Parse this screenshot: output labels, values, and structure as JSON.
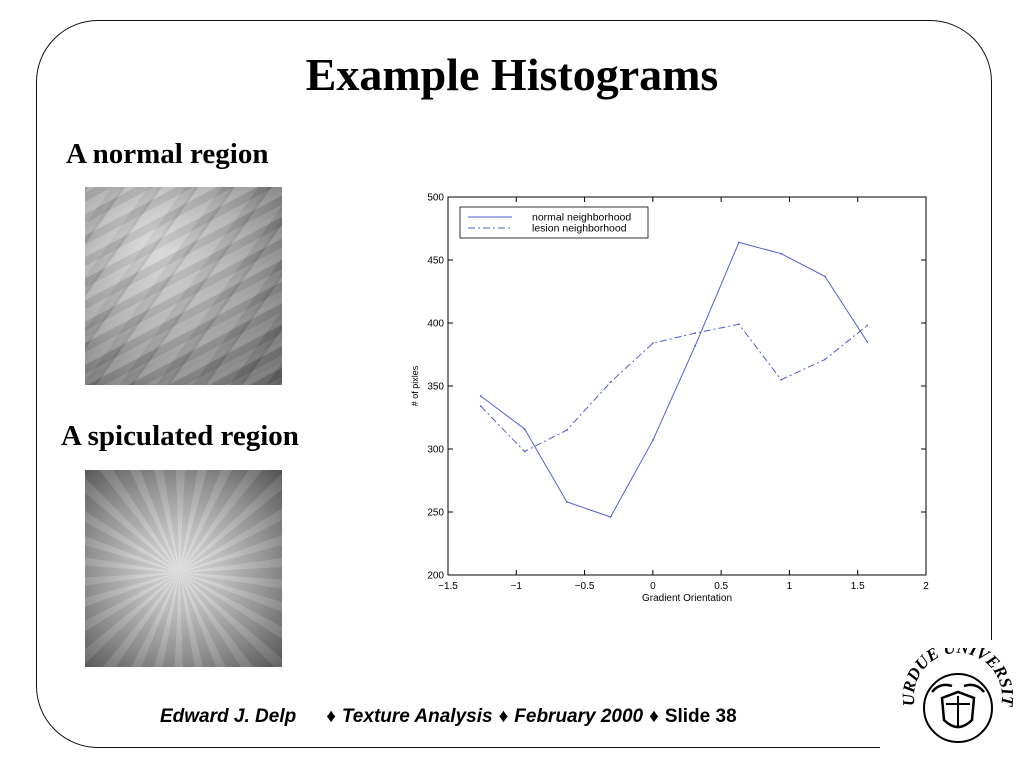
{
  "slide": {
    "title": "Example Histograms",
    "normal_label": "A normal region",
    "spiculated_label": "A spiculated region"
  },
  "footer": {
    "author": "Edward J. Delp",
    "topic": "Texture Analysis",
    "date": "February 2000",
    "slide": "Slide 38",
    "separator": "♦"
  },
  "logo": {
    "icon": "purdue-university-seal",
    "text": "PURDUE UNIVERSITY"
  },
  "chart_data": {
    "type": "line",
    "title": "",
    "xlabel": "Gradient Orientation",
    "ylabel": "# of pixles",
    "xlim": [
      -1.5,
      2
    ],
    "ylim": [
      200,
      500
    ],
    "xticks": [
      -1.5,
      -1,
      -0.5,
      0,
      0.5,
      1,
      1.5,
      2
    ],
    "xtick_labels": [
      "−1.5",
      "−1",
      "−0.5",
      "0",
      "0.5",
      "1",
      "1.5",
      "2"
    ],
    "yticks": [
      200,
      250,
      300,
      350,
      400,
      450,
      500
    ],
    "ytick_labels": [
      "200",
      "250",
      "300",
      "350",
      "400",
      "450",
      "500"
    ],
    "grid": false,
    "legend_position": "top-left",
    "series": [
      {
        "name": "normal neighborhood",
        "style": "solid",
        "color": "#4f5fd0",
        "x": [
          -1.26,
          -0.94,
          -0.63,
          -0.31,
          0.0,
          0.31,
          0.63,
          0.94,
          1.26,
          1.57
        ],
        "y": [
          342,
          316,
          258,
          246,
          307,
          382,
          464,
          455,
          437,
          385
        ]
      },
      {
        "name": "lesion neighborhood",
        "style": "dashdot",
        "color": "#4f5fd0",
        "x": [
          -1.26,
          -0.94,
          -0.63,
          -0.31,
          0.0,
          0.31,
          0.63,
          0.94,
          1.26,
          1.57
        ],
        "y": [
          334,
          298,
          315,
          353,
          384,
          392,
          399,
          355,
          371,
          398
        ]
      }
    ]
  }
}
